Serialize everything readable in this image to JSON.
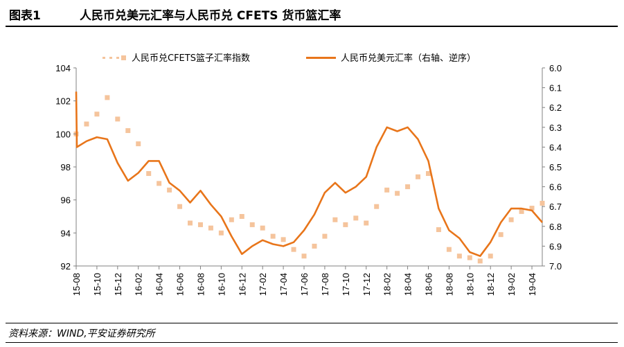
{
  "header": {
    "fig_no": "图表1",
    "title": "人民币兑美元汇率与人民币兑 CFETS 货币篮汇率"
  },
  "source": "资料来源：WIND,平安证券研究所",
  "colors": {
    "cfets": "#f5c49c",
    "usd": "#e8751a",
    "axis": "#808080"
  },
  "chart_data": {
    "type": "line",
    "title": "",
    "x_ticks": [
      "15-08",
      "15-10",
      "15-12",
      "16-02",
      "16-04",
      "16-06",
      "16-08",
      "16-10",
      "16-12",
      "17-02",
      "17-04",
      "17-06",
      "17-08",
      "17-10",
      "17-12",
      "18-02",
      "18-04",
      "18-06",
      "18-08",
      "18-10",
      "18-12",
      "19-02",
      "19-04"
    ],
    "x_range": [
      "2015-08",
      "2019-05"
    ],
    "y_left": {
      "ticks": [
        "104",
        "102",
        "100",
        "98",
        "96",
        "94",
        "92"
      ],
      "range": [
        92,
        104
      ]
    },
    "y_right": {
      "ticks": [
        "6.0",
        "6.1",
        "6.2",
        "6.3",
        "6.4",
        "6.5",
        "6.6",
        "6.7",
        "6.8",
        "6.9",
        "7.0"
      ],
      "range": [
        6.0,
        7.0
      ],
      "reversed": true
    },
    "legend_placement": "top",
    "series": [
      {
        "name": "人民币兑CFETS篮子汇率指数",
        "style": "markers",
        "axis": "left",
        "points": [
          [
            "2015-08",
            100.0
          ],
          [
            "2015-09",
            100.6
          ],
          [
            "2015-10",
            101.2
          ],
          [
            "2015-11",
            102.2
          ],
          [
            "2015-12",
            100.9
          ],
          [
            "2016-01",
            100.2
          ],
          [
            "2016-02",
            99.4
          ],
          [
            "2016-03",
            97.6
          ],
          [
            "2016-04",
            97.0
          ],
          [
            "2016-05",
            96.6
          ],
          [
            "2016-06",
            95.6
          ],
          [
            "2016-07",
            94.6
          ],
          [
            "2016-08",
            94.5
          ],
          [
            "2016-09",
            94.3
          ],
          [
            "2016-10",
            94.0
          ],
          [
            "2016-11",
            94.8
          ],
          [
            "2016-12",
            95.0
          ],
          [
            "2017-01",
            94.5
          ],
          [
            "2017-02",
            94.3
          ],
          [
            "2017-03",
            93.8
          ],
          [
            "2017-04",
            93.6
          ],
          [
            "2017-05",
            93.0
          ],
          [
            "2017-06",
            92.6
          ],
          [
            "2017-07",
            93.2
          ],
          [
            "2017-08",
            93.8
          ],
          [
            "2017-09",
            94.8
          ],
          [
            "2017-10",
            94.5
          ],
          [
            "2017-11",
            94.9
          ],
          [
            "2017-12",
            94.6
          ],
          [
            "2018-01",
            95.6
          ],
          [
            "2018-02",
            96.6
          ],
          [
            "2018-03",
            96.4
          ],
          [
            "2018-04",
            96.8
          ],
          [
            "2018-05",
            97.4
          ],
          [
            "2018-06",
            97.6
          ],
          [
            "2018-07",
            94.2
          ],
          [
            "2018-08",
            93.0
          ],
          [
            "2018-09",
            92.6
          ],
          [
            "2018-10",
            92.5
          ],
          [
            "2018-11",
            92.3
          ],
          [
            "2018-12",
            92.6
          ],
          [
            "2019-01",
            93.9
          ],
          [
            "2019-02",
            94.8
          ],
          [
            "2019-03",
            95.3
          ],
          [
            "2019-04",
            95.5
          ],
          [
            "2019-05",
            95.8
          ]
        ]
      },
      {
        "name": "人民币兑美元汇率（右轴、逆序）",
        "style": "line",
        "axis": "right",
        "points": [
          [
            "2015-08",
            6.12
          ],
          [
            "2015-08",
            6.4
          ],
          [
            "2015-09",
            6.37
          ],
          [
            "2015-10",
            6.35
          ],
          [
            "2015-11",
            6.36
          ],
          [
            "2015-12",
            6.48
          ],
          [
            "2016-01",
            6.57
          ],
          [
            "2016-02",
            6.53
          ],
          [
            "2016-03",
            6.47
          ],
          [
            "2016-04",
            6.47
          ],
          [
            "2016-05",
            6.58
          ],
          [
            "2016-06",
            6.62
          ],
          [
            "2016-07",
            6.68
          ],
          [
            "2016-08",
            6.62
          ],
          [
            "2016-09",
            6.69
          ],
          [
            "2016-10",
            6.75
          ],
          [
            "2016-11",
            6.85
          ],
          [
            "2016-12",
            6.94
          ],
          [
            "2017-01",
            6.9
          ],
          [
            "2017-02",
            6.87
          ],
          [
            "2017-03",
            6.89
          ],
          [
            "2017-04",
            6.9
          ],
          [
            "2017-05",
            6.88
          ],
          [
            "2017-06",
            6.82
          ],
          [
            "2017-07",
            6.74
          ],
          [
            "2017-08",
            6.63
          ],
          [
            "2017-09",
            6.58
          ],
          [
            "2017-10",
            6.63
          ],
          [
            "2017-11",
            6.6
          ],
          [
            "2017-12",
            6.55
          ],
          [
            "2018-01",
            6.4
          ],
          [
            "2018-02",
            6.3
          ],
          [
            "2018-03",
            6.32
          ],
          [
            "2018-04",
            6.3
          ],
          [
            "2018-05",
            6.36
          ],
          [
            "2018-06",
            6.47
          ],
          [
            "2018-07",
            6.71
          ],
          [
            "2018-08",
            6.82
          ],
          [
            "2018-09",
            6.86
          ],
          [
            "2018-10",
            6.93
          ],
          [
            "2018-11",
            6.95
          ],
          [
            "2018-12",
            6.88
          ],
          [
            "2019-01",
            6.78
          ],
          [
            "2019-02",
            6.71
          ],
          [
            "2019-03",
            6.71
          ],
          [
            "2019-04",
            6.72
          ],
          [
            "2019-05",
            6.78
          ]
        ]
      }
    ]
  }
}
